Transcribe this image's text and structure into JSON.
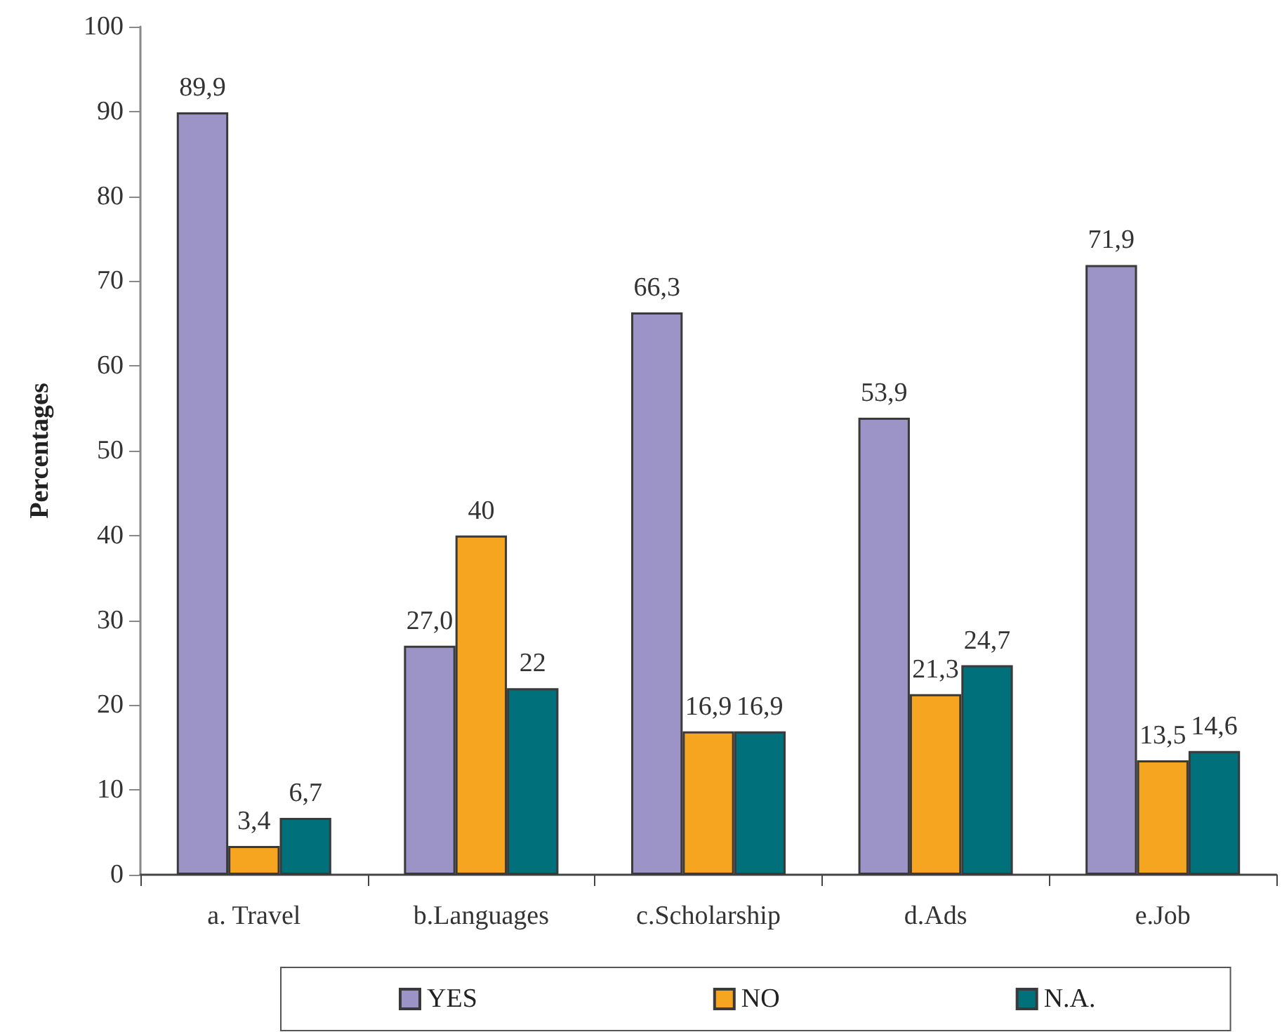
{
  "chart_data": {
    "type": "bar",
    "ylabel": "Percentages",
    "categories": [
      "a. Travel",
      "b.Languages",
      "c.Scholarship",
      "d.Ads",
      "e.Job"
    ],
    "series": [
      {
        "name": "YES",
        "color": "#9c94c7",
        "values": [
          89.9,
          27.0,
          66.3,
          53.9,
          71.9
        ],
        "value_labels": [
          "89,9",
          "27,0",
          "66,3",
          "53,9",
          "71,9"
        ]
      },
      {
        "name": "NO",
        "color": "#f5a51f",
        "values": [
          3.4,
          40,
          16.9,
          21.3,
          13.5
        ],
        "value_labels": [
          "3,4",
          "40",
          "16,9",
          "21,3",
          "13,5"
        ]
      },
      {
        "name": "N.A.",
        "color": "#00707a",
        "values": [
          6.7,
          22,
          16.9,
          24.7,
          14.6
        ],
        "value_labels": [
          "6,7",
          "22",
          "16,9",
          "24,7",
          "14,6"
        ]
      }
    ],
    "ylim": [
      0,
      100
    ],
    "yticks": [
      0,
      10,
      20,
      30,
      40,
      50,
      60,
      70,
      80,
      90,
      100
    ],
    "legend": "bottom"
  }
}
